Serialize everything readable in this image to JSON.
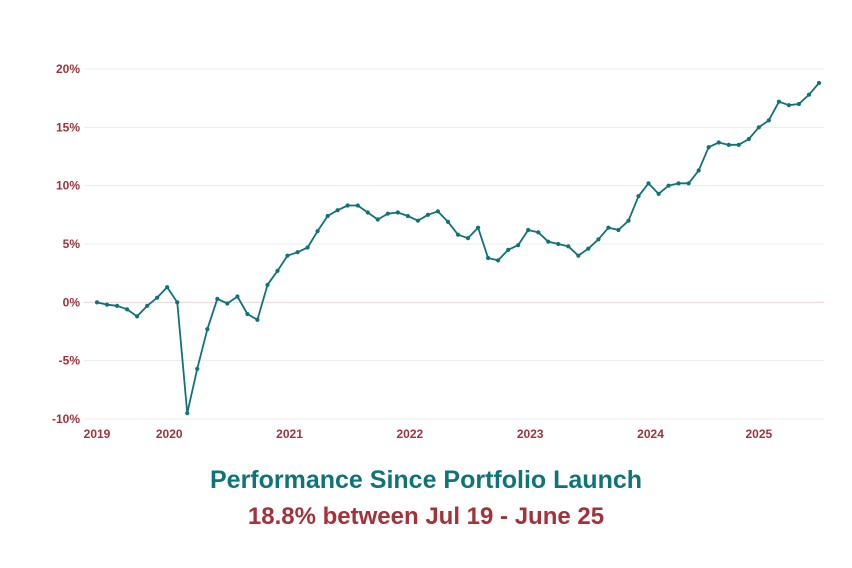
{
  "colors": {
    "line": "#0f7479",
    "axis_text": "#a3323a",
    "title": "#0f7479",
    "subtitle": "#a3323a",
    "grid": "#ececec",
    "zero_line": "#f1d3d5"
  },
  "titles": {
    "title": "Performance Since Portfolio Launch",
    "subtitle": "18.8% between Jul 19 - June 25"
  },
  "chart_data": {
    "type": "line",
    "title": "Performance Since Portfolio Launch",
    "subtitle": "18.8% between Jul 19 - June 25",
    "xlabel": "",
    "ylabel": "",
    "grid": true,
    "legend": "none",
    "x_range": [
      2019.5,
      2025.5
    ],
    "ylim": [
      -10,
      20
    ],
    "y_ticks": [
      {
        "value": -10,
        "label": "-10%"
      },
      {
        "value": -5,
        "label": "-5%"
      },
      {
        "value": 0,
        "label": "0%"
      },
      {
        "value": 5,
        "label": "5%"
      },
      {
        "value": 10,
        "label": "10%"
      },
      {
        "value": 15,
        "label": "15%"
      },
      {
        "value": 20,
        "label": "20%"
      }
    ],
    "x_ticks": [
      {
        "value": 2019.5,
        "label": "2019"
      },
      {
        "value": 2020.1,
        "label": "2020"
      },
      {
        "value": 2021.1,
        "label": "2021"
      },
      {
        "value": 2022.1,
        "label": "2022"
      },
      {
        "value": 2023.1,
        "label": "2023"
      },
      {
        "value": 2024.1,
        "label": "2024"
      },
      {
        "value": 2025.0,
        "label": "2025"
      }
    ],
    "series": [
      {
        "x": [
          2019.5,
          2019.583,
          2019.667,
          2019.75,
          2019.833,
          2019.917,
          2020.0,
          2020.083,
          2020.167,
          2020.25,
          2020.333,
          2020.417,
          2020.5,
          2020.583,
          2020.667,
          2020.75,
          2020.833,
          2020.917,
          2021.0,
          2021.083,
          2021.167,
          2021.25,
          2021.333,
          2021.417,
          2021.5,
          2021.583,
          2021.667,
          2021.75,
          2021.833,
          2021.917,
          2022.0,
          2022.083,
          2022.167,
          2022.25,
          2022.333,
          2022.417,
          2022.5,
          2022.583,
          2022.667,
          2022.75,
          2022.833,
          2022.917,
          2023.0,
          2023.083,
          2023.167,
          2023.25,
          2023.333,
          2023.417,
          2023.5,
          2023.583,
          2023.667,
          2023.75,
          2023.833,
          2023.917,
          2024.0,
          2024.083,
          2024.167,
          2024.25,
          2024.333,
          2024.417,
          2024.5,
          2024.583,
          2024.667,
          2024.75,
          2024.833,
          2024.917,
          2025.0,
          2025.083,
          2025.167,
          2025.25,
          2025.333,
          2025.417,
          2025.5
        ],
        "values": [
          0.0,
          -0.2,
          -0.3,
          -0.6,
          -1.2,
          -0.3,
          0.4,
          1.3,
          0.0,
          -9.5,
          -5.7,
          -2.3,
          0.3,
          -0.1,
          0.5,
          -1.0,
          -1.5,
          1.5,
          2.7,
          4.0,
          4.3,
          4.7,
          6.1,
          7.4,
          7.9,
          8.3,
          8.3,
          7.7,
          7.1,
          7.6,
          7.7,
          7.4,
          7.0,
          7.5,
          7.8,
          6.9,
          5.8,
          5.5,
          6.4,
          3.8,
          3.6,
          4.5,
          4.9,
          6.2,
          6.0,
          5.2,
          5.0,
          4.8,
          4.0,
          4.6,
          5.4,
          6.4,
          6.2,
          7.0,
          9.1,
          10.2,
          9.3,
          10.0,
          10.2,
          10.2,
          11.3,
          13.3,
          13.7,
          13.5,
          13.5,
          14.0,
          15.0,
          15.6,
          17.2,
          16.9,
          17.0,
          17.8,
          18.8
        ]
      }
    ]
  }
}
